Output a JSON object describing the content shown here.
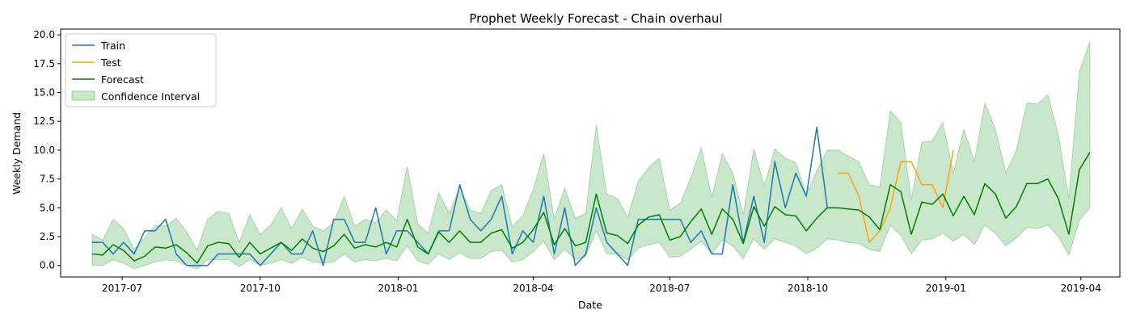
{
  "chart_data": {
    "type": "line",
    "title": "Prophet Weekly Forecast - Chain overhaul",
    "xlabel": "Date",
    "ylabel": "Weekly Demand",
    "xlim": [
      "2017-05-21",
      "2019-04-27"
    ],
    "ylim": [
      -1.0,
      20.5
    ],
    "x_ticks": [
      {
        "date": "2017-07-01",
        "label": "2017-07"
      },
      {
        "date": "2017-10-01",
        "label": "2017-10"
      },
      {
        "date": "2018-01-01",
        "label": "2018-01"
      },
      {
        "date": "2018-04-01",
        "label": "2018-04"
      },
      {
        "date": "2018-07-01",
        "label": "2018-07"
      },
      {
        "date": "2018-10-01",
        "label": "2018-10"
      },
      {
        "date": "2019-01-01",
        "label": "2019-01"
      },
      {
        "date": "2019-04-01",
        "label": "2019-04"
      }
    ],
    "y_ticks": [
      {
        "value": 0,
        "label": "0.0"
      },
      {
        "value": 2.5,
        "label": "2.5"
      },
      {
        "value": 5,
        "label": "5.0"
      },
      {
        "value": 7.5,
        "label": "7.5"
      },
      {
        "value": 10,
        "label": "10.0"
      },
      {
        "value": 12.5,
        "label": "12.5"
      },
      {
        "value": 15,
        "label": "15.0"
      },
      {
        "value": 17.5,
        "label": "17.5"
      },
      {
        "value": 20,
        "label": "20.0"
      }
    ],
    "grid": false,
    "legend_position": "top-left",
    "train_start": "2017-06-11",
    "test_start": "2018-10-21",
    "forecast_start": "2017-06-11",
    "train_values": [
      2,
      2,
      1,
      2,
      1,
      3,
      3,
      4,
      1,
      0,
      0,
      0,
      1,
      1,
      1,
      1,
      0,
      1,
      2,
      1,
      1,
      3,
      0,
      4,
      4,
      2,
      2,
      5,
      1,
      3,
      3,
      2,
      1,
      3,
      3,
      7,
      4,
      3,
      4,
      6,
      1,
      3,
      2,
      6,
      1,
      5,
      0,
      1,
      5,
      2,
      1,
      0,
      4,
      4,
      4,
      4,
      4,
      2,
      3,
      1,
      1,
      7,
      2,
      6,
      2,
      9,
      5,
      8,
      6,
      12,
      5
    ],
    "test_values": [
      8,
      8,
      6,
      2,
      3,
      5,
      9,
      9,
      7,
      7,
      5,
      10
    ],
    "forecast_values": [
      1.0,
      0.9,
      1.8,
      1.3,
      0.4,
      0.8,
      1.6,
      1.5,
      1.8,
      1.1,
      0.2,
      1.7,
      2.0,
      1.9,
      0.7,
      2.0,
      1.0,
      1.5,
      2.0,
      1.3,
      2.3,
      1.5,
      1.2,
      1.7,
      2.7,
      1.5,
      1.8,
      1.6,
      2.0,
      1.6,
      4.0,
      1.6,
      1.0,
      2.9,
      2.0,
      3.0,
      2.0,
      2.0,
      2.8,
      3.1,
      1.5,
      2.0,
      3.1,
      4.6,
      1.8,
      3.2,
      1.7,
      2.0,
      6.2,
      2.8,
      2.6,
      1.9,
      3.5,
      4.2,
      4.4,
      2.2,
      2.5,
      3.8,
      4.9,
      2.7,
      4.9,
      4.0,
      1.9,
      5.1,
      3.4,
      5.1,
      4.4,
      4.3,
      3.0,
      4.1,
      5.0,
      5.0,
      4.9,
      4.8,
      4.2,
      3.1,
      7.0,
      6.4,
      2.7,
      5.5,
      5.3,
      6.2,
      4.3,
      6.0,
      4.4,
      7.1,
      6.2,
      4.1,
      5.1,
      7.1,
      7.1,
      7.5,
      5.8,
      2.7,
      8.3,
      9.8
    ],
    "ci_lower": [
      0.0,
      0.0,
      0.5,
      0.2,
      -0.3,
      0.0,
      0.3,
      0.5,
      0.4,
      0.0,
      -0.3,
      0.5,
      0.5,
      0.5,
      -0.1,
      0.5,
      0.0,
      0.2,
      0.5,
      0.2,
      0.7,
      0.3,
      0.2,
      0.3,
      1.0,
      0.3,
      0.5,
      0.4,
      0.6,
      0.4,
      1.7,
      0.4,
      0.1,
      1.0,
      0.5,
      1.1,
      0.6,
      0.6,
      1.2,
      1.3,
      0.3,
      0.5,
      1.2,
      2.1,
      0.5,
      1.4,
      0.5,
      0.8,
      3.0,
      1.0,
      1.0,
      0.5,
      1.5,
      1.8,
      2.0,
      0.7,
      0.8,
      1.4,
      2.1,
      1.0,
      2.2,
      1.7,
      0.6,
      2.3,
      1.4,
      2.3,
      2.0,
      1.7,
      1.0,
      1.5,
      2.3,
      2.2,
      2.0,
      1.9,
      1.4,
      1.2,
      3.5,
      2.6,
      1.0,
      2.2,
      2.3,
      2.8,
      2.1,
      2.7,
      1.8,
      3.5,
      2.8,
      1.7,
      2.4,
      3.3,
      3.2,
      3.5,
      2.5,
      0.9,
      3.9,
      5.0
    ],
    "ci_upper": [
      2.7,
      2.2,
      4.0,
      3.2,
      1.4,
      2.4,
      3.5,
      3.4,
      4.1,
      2.9,
      1.3,
      4.0,
      4.7,
      4.5,
      2.0,
      4.4,
      2.7,
      3.5,
      5.0,
      3.2,
      4.9,
      3.4,
      3.0,
      3.7,
      6.0,
      3.4,
      4.0,
      3.7,
      4.8,
      3.9,
      8.6,
      3.6,
      2.8,
      6.3,
      4.5,
      6.8,
      4.8,
      4.5,
      6.5,
      7.0,
      3.4,
      4.3,
      6.6,
      9.7,
      4.0,
      6.7,
      4.1,
      4.5,
      12.2,
      6.2,
      5.8,
      4.2,
      7.3,
      8.5,
      9.3,
      4.8,
      5.4,
      7.6,
      10.2,
      5.9,
      9.7,
      8.0,
      4.4,
      10.1,
      6.9,
      10.1,
      9.3,
      8.9,
      6.1,
      8.2,
      10.0,
      10.0,
      9.5,
      9.0,
      7.0,
      6.8,
      13.4,
      12.4,
      5.7,
      10.7,
      10.8,
      12.4,
      8.0,
      11.8,
      9.0,
      14.1,
      11.8,
      8.0,
      10.0,
      14.1,
      14.0,
      14.8,
      11.3,
      5.8,
      16.8,
      19.4
    ],
    "series": [
      {
        "name": "Train",
        "color": "#1f77b4"
      },
      {
        "name": "Test",
        "color": "#ffa500"
      },
      {
        "name": "Forecast",
        "color": "#008000"
      },
      {
        "name": "Confidence Interval",
        "color": "#4caf50"
      }
    ]
  }
}
